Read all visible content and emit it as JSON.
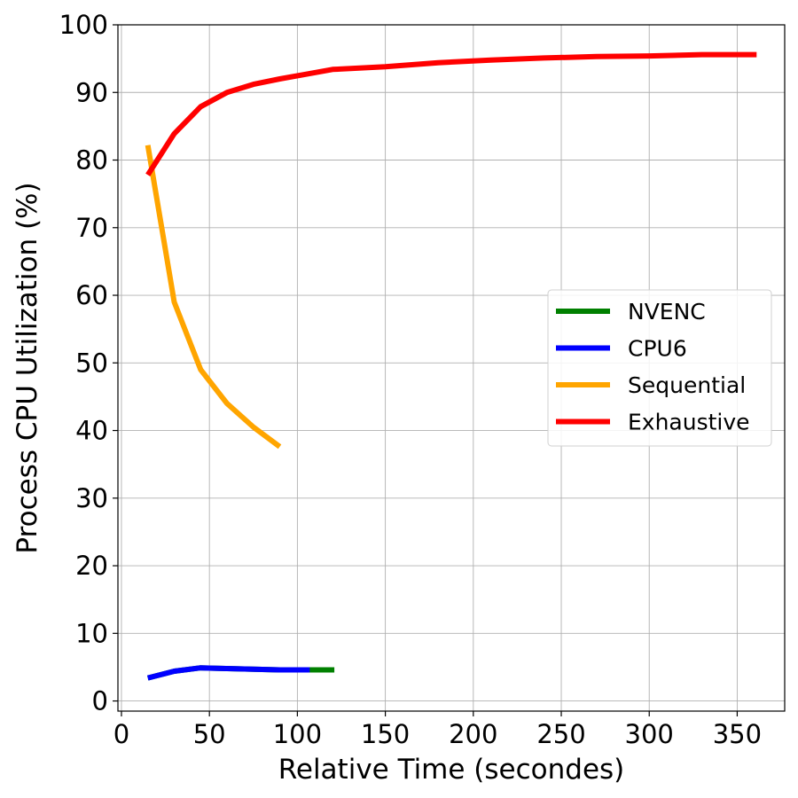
{
  "chart_data": {
    "type": "line",
    "title": "",
    "xlabel": "Relative Time (secondes)",
    "ylabel": "Process CPU Utilization (%)",
    "xlim": [
      -2,
      377
    ],
    "ylim": [
      -1.5,
      100
    ],
    "xticks": [
      0,
      50,
      100,
      150,
      200,
      250,
      300,
      350
    ],
    "yticks": [
      0,
      10,
      20,
      30,
      40,
      50,
      60,
      70,
      80,
      90,
      100
    ],
    "xtick_labels": [
      "0",
      "50",
      "100",
      "150",
      "200",
      "250",
      "300",
      "350"
    ],
    "ytick_labels": [
      "0",
      "10",
      "20",
      "30",
      "40",
      "50",
      "60",
      "70",
      "80",
      "90",
      "100"
    ],
    "grid": true,
    "legend_position": "center-right",
    "series": [
      {
        "name": "NVENC",
        "color": "#008000",
        "x": [
          15,
          30,
          45,
          60,
          75,
          90,
          105,
          121
        ],
        "y": [
          3.4,
          4.4,
          4.9,
          4.8,
          4.7,
          4.6,
          4.6,
          4.6
        ]
      },
      {
        "name": "CPU6",
        "color": "#0000ff",
        "x": [
          15,
          30,
          45,
          60,
          75,
          90,
          107
        ],
        "y": [
          3.4,
          4.4,
          4.9,
          4.8,
          4.7,
          4.6,
          4.6
        ]
      },
      {
        "name": "Sequential",
        "color": "#ffa500",
        "x": [
          15,
          30,
          45,
          60,
          75,
          90
        ],
        "y": [
          82.2,
          59.0,
          49.0,
          44.0,
          40.5,
          37.6
        ]
      },
      {
        "name": "Exhaustive",
        "color": "#ff0000",
        "x": [
          15,
          30,
          45,
          60,
          75,
          90,
          105,
          120,
          150,
          180,
          210,
          240,
          270,
          300,
          330,
          361
        ],
        "y": [
          77.8,
          83.9,
          87.9,
          90.0,
          91.2,
          92.0,
          92.7,
          93.4,
          93.8,
          94.4,
          94.8,
          95.1,
          95.3,
          95.4,
          95.6,
          95.6
        ]
      }
    ]
  }
}
